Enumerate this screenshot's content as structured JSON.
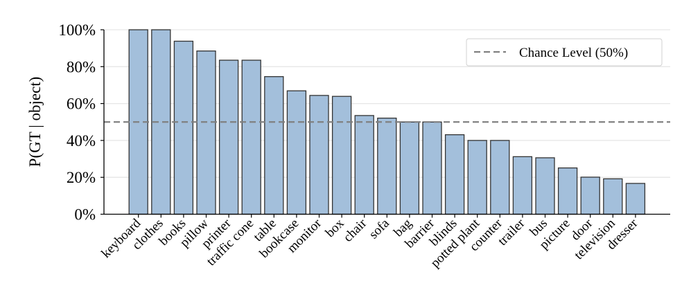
{
  "chart_data": {
    "type": "bar",
    "title": "",
    "xlabel": "",
    "ylabel": "P(GT | object)",
    "ylim": [
      0,
      100
    ],
    "y_ticks": [
      "0%",
      "20%",
      "40%",
      "60%",
      "80%",
      "100%"
    ],
    "y_tick_values": [
      0,
      20,
      40,
      60,
      80,
      100
    ],
    "grid": "horizontal",
    "categories": [
      "keyboard",
      "clothes",
      "books",
      "pillow",
      "printer",
      "traffic cone",
      "table",
      "bookcase",
      "monitor",
      "box",
      "chair",
      "sofa",
      "bag",
      "barrier",
      "blinds",
      "potted plant",
      "counter",
      "trailer",
      "bus",
      "picture",
      "door",
      "television",
      "dresser"
    ],
    "values": [
      100,
      100,
      93.8,
      88.5,
      83.5,
      83.5,
      74.6,
      66.9,
      64.4,
      63.9,
      53.5,
      52.1,
      50.0,
      50.0,
      43.1,
      40.0,
      40.0,
      31.2,
      30.6,
      25.1,
      20.1,
      19.2,
      16.7
    ],
    "bar_color": "#a3bfdb",
    "bar_edge_color": "#333333",
    "reference_line": {
      "value": 50,
      "label": "Chance Level (50%)",
      "style": "dashed",
      "color": "#808080"
    },
    "legend": {
      "position": "top-right",
      "entries": [
        "Chance Level (50%)"
      ]
    }
  }
}
